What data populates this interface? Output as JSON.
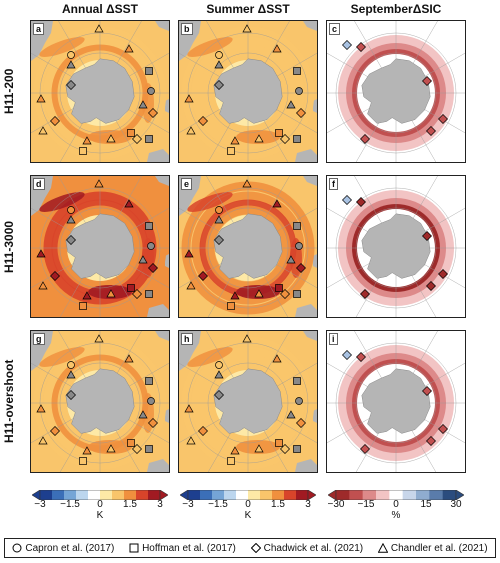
{
  "columns": [
    "Annual ΔSST",
    "Summer ΔSST",
    "SeptemberΔSIC"
  ],
  "rows": [
    "H11-200",
    "H11-3000",
    "H11-overshoot"
  ],
  "panel_labels": [
    "a",
    "b",
    "c",
    "d",
    "e",
    "f",
    "g",
    "h",
    "i"
  ],
  "colors": {
    "land": "#b5b5b5",
    "sst_scale": [
      "#1d3f8f",
      "#3b6fb8",
      "#75a5d6",
      "#bcd6ee",
      "#ffffff",
      "#fde9a6",
      "#f9c56b",
      "#f0903e",
      "#d8442a",
      "#a11a22"
    ],
    "sic_scale": [
      "#9e2a2a",
      "#c15050",
      "#dd8a8a",
      "#f2c4c4",
      "#ffffff",
      "#c8d6ea",
      "#8faccf",
      "#5a7cab",
      "#2b4c7e"
    ]
  },
  "colorbars": [
    {
      "ticks": [
        "−3",
        "−1.5",
        "0",
        "1.5",
        "3"
      ],
      "unit": "K"
    },
    {
      "ticks": [
        "−3",
        "−1.5",
        "0",
        "1.5",
        "3"
      ],
      "unit": "K"
    },
    {
      "ticks": [
        "−30",
        "−15",
        "0",
        "15",
        "30"
      ],
      "unit": "%"
    }
  ],
  "legend": [
    {
      "marker": "circle",
      "label": "Capron et al. (2017)"
    },
    {
      "marker": "square",
      "label": "Hoffman et al. (2017)"
    },
    {
      "marker": "diamond",
      "label": "Chadwick et al. (2021)"
    },
    {
      "marker": "triangle",
      "label": "Chandler et al. (2021)"
    }
  ],
  "chart_data": {
    "type": "heatmap",
    "description_units": {
      "sst": "K",
      "sic": "%"
    },
    "colorbar_ranges": {
      "sst": [
        -3,
        3
      ],
      "sic": [
        -30,
        30
      ]
    },
    "panels": [
      {
        "label": "a",
        "row": "H11-200",
        "col": "Annual ΔSST",
        "intensity": 1.2
      },
      {
        "label": "b",
        "row": "H11-200",
        "col": "Summer ΔSST",
        "intensity": 1.1
      },
      {
        "label": "c",
        "row": "H11-200",
        "col": "SeptemberΔSIC",
        "intensity": -18
      },
      {
        "label": "d",
        "row": "H11-3000",
        "col": "Annual ΔSST",
        "intensity": 2.2
      },
      {
        "label": "e",
        "row": "H11-3000",
        "col": "Summer ΔSST",
        "intensity": 2.0
      },
      {
        "label": "f",
        "row": "H11-3000",
        "col": "SeptemberΔSIC",
        "intensity": -27
      },
      {
        "label": "g",
        "row": "H11-overshoot",
        "col": "Annual ΔSST",
        "intensity": 1.2
      },
      {
        "label": "h",
        "row": "H11-overshoot",
        "col": "Summer ΔSST",
        "intensity": 1.1
      },
      {
        "label": "i",
        "row": "H11-overshoot",
        "col": "SeptemberΔSIC",
        "intensity": -18
      }
    ]
  }
}
